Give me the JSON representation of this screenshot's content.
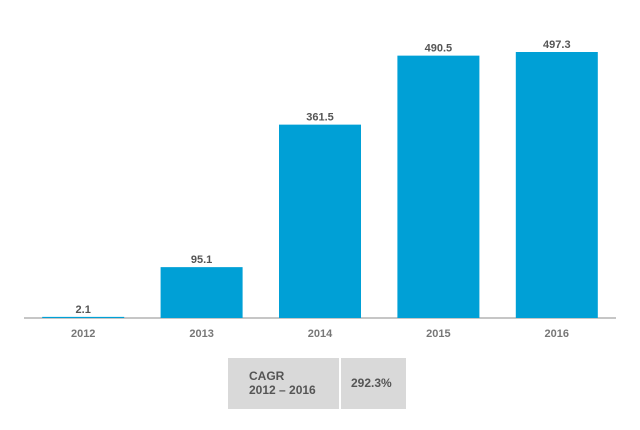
{
  "chart_data": {
    "type": "bar",
    "categories": [
      "2012",
      "2013",
      "2014",
      "2015",
      "2016"
    ],
    "values": [
      2.1,
      95.1,
      361.5,
      490.5,
      497.3
    ],
    "color": "#00a0d6",
    "cagr": {
      "label": "CAGR",
      "period": "2012 – 2016",
      "value": "292.3%"
    }
  }
}
